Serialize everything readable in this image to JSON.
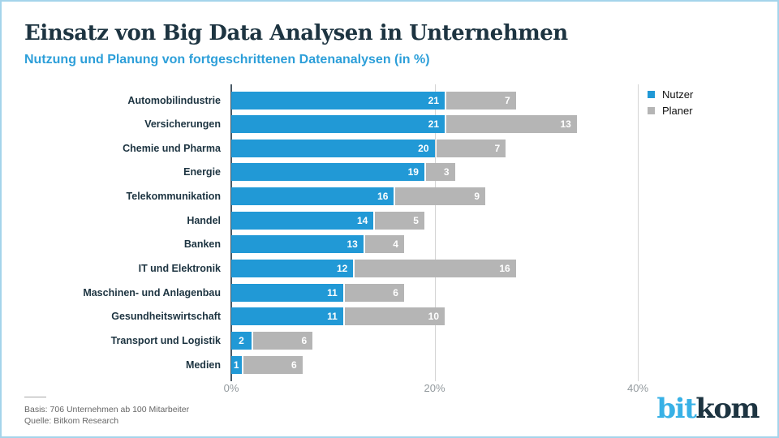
{
  "header": {
    "title": "Einsatz von Big Data Analysen in Unternehmen",
    "subtitle": "Nutzung und Planung von fortgeschrittenen Datenanalysen (in %)"
  },
  "legend": {
    "items": [
      {
        "label": "Nutzer",
        "color": "#2199d6"
      },
      {
        "label": "Planer",
        "color": "#b5b5b5"
      }
    ]
  },
  "chart_data": {
    "type": "bar",
    "orientation": "horizontal",
    "stacked": true,
    "title": "Einsatz von Big Data Analysen in Unternehmen",
    "subtitle": "Nutzung und Planung von fortgeschrittenen Datenanalysen (in %)",
    "categories": [
      "Automobilindustrie",
      "Versicherungen",
      "Chemie und Pharma",
      "Energie",
      "Telekommunikation",
      "Handel",
      "Banken",
      "IT und Elektronik",
      "Maschinen- und Anlagenbau",
      "Gesundheitswirtschaft",
      "Transport und Logistik",
      "Medien"
    ],
    "series": [
      {
        "name": "Nutzer",
        "color": "#2199d6",
        "values": [
          21,
          21,
          20,
          19,
          16,
          14,
          13,
          12,
          11,
          11,
          2,
          1
        ]
      },
      {
        "name": "Planer",
        "color": "#b5b5b5",
        "values": [
          7,
          13,
          7,
          3,
          9,
          5,
          4,
          16,
          6,
          10,
          6,
          6
        ]
      }
    ],
    "x_axis": {
      "tick_labels": [
        "0%",
        "20%",
        "40%"
      ],
      "tick_values": [
        0,
        20,
        40
      ],
      "range": [
        0,
        50
      ]
    },
    "grid": true,
    "legend_position": "top-right",
    "value_labels": "inside-end, white"
  },
  "footer": {
    "basis": "Basis: 706 Unternehmen ab 100 Mitarbeiter",
    "quelle": "Quelle: Bitkom Research"
  },
  "logo": {
    "part1": "bit",
    "part2": "kom"
  }
}
